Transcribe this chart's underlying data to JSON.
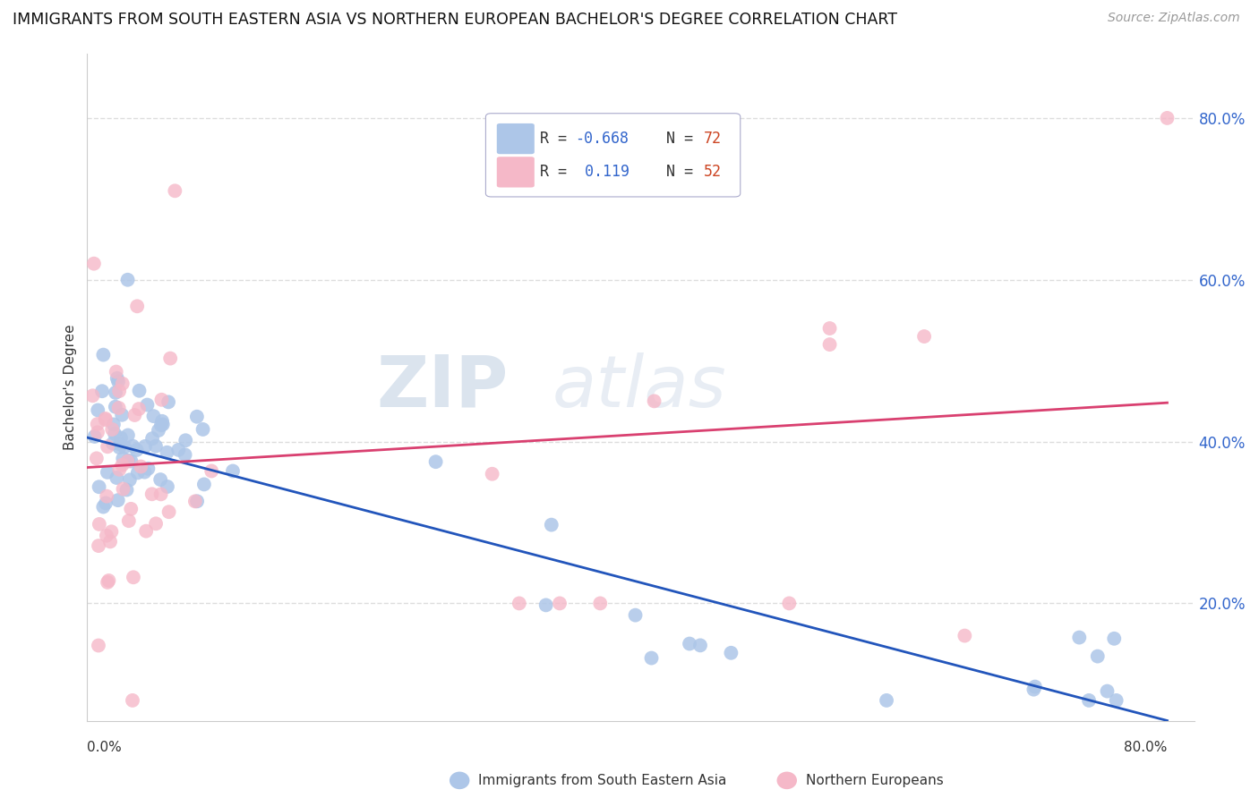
{
  "title": "IMMIGRANTS FROM SOUTH EASTERN ASIA VS NORTHERN EUROPEAN BACHELOR'S DEGREE CORRELATION CHART",
  "source": "Source: ZipAtlas.com",
  "ylabel": "Bachelor's Degree",
  "blue_R": "-0.668",
  "blue_N": "72",
  "pink_R": "0.119",
  "pink_N": "52",
  "blue_color": "#adc6e8",
  "pink_color": "#f5b8c8",
  "blue_line_color": "#2255bb",
  "pink_line_color": "#d94070",
  "blue_trend_start_y": 0.405,
  "blue_trend_end_y": 0.055,
  "pink_trend_start_y": 0.368,
  "pink_trend_end_y": 0.448,
  "xlim_min": 0.0,
  "xlim_max": 0.82,
  "ylim_min": 0.055,
  "ylim_max": 0.88,
  "ytick_vals": [
    0.2,
    0.4,
    0.6,
    0.8
  ],
  "ytick_labels": [
    "20.0%",
    "40.0%",
    "60.0%",
    "80.0%"
  ],
  "grid_color": "#dddddd",
  "background_color": "#ffffff",
  "watermark_color": "#ccd9e8",
  "legend_box_color": "#f0f4ff",
  "legend_border_color": "#aabbdd"
}
